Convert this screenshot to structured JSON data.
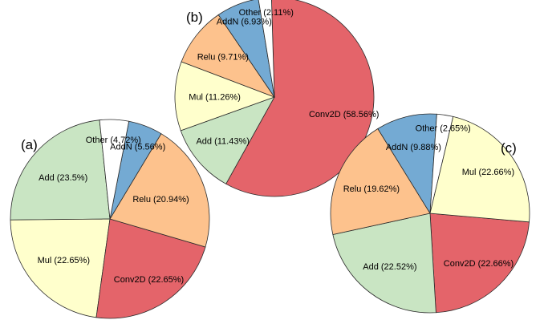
{
  "chart_data": [
    {
      "type": "pie",
      "panel_label": "(a)",
      "categories": [
        "Add",
        "Mul",
        "Conv2D",
        "Relu",
        "AddN",
        "Other"
      ],
      "values": [
        23.5,
        22.65,
        22.65,
        20.94,
        5.56,
        4.72
      ],
      "labels": [
        "Add (23.5%)",
        "Mul (22.65%)",
        "Conv2D (22.65%)",
        "Relu (20.94%)",
        "AddN (5.56%)",
        "Other (4.72%)"
      ],
      "colors": [
        "#c9e5c3",
        "#ffffcc",
        "#e4646a",
        "#fdc28d",
        "#74aad3",
        "#ffffff"
      ]
    },
    {
      "type": "pie",
      "panel_label": "(b)",
      "categories": [
        "Conv2D",
        "Add",
        "Mul",
        "Relu",
        "AddN",
        "Other"
      ],
      "values": [
        58.56,
        11.43,
        11.26,
        9.71,
        6.93,
        2.11
      ],
      "labels": [
        "Conv2D (58.56%)",
        "Add (11.43%)",
        "Mul (11.26%)",
        "Relu (9.71%)",
        "AddN (6.93%)",
        "Other (2.11%)"
      ],
      "colors": [
        "#e4646a",
        "#c9e5c3",
        "#ffffcc",
        "#fdc28d",
        "#74aad3",
        "#ffffff"
      ]
    },
    {
      "type": "pie",
      "panel_label": "(c)",
      "categories": [
        "Conv2D",
        "Add",
        "Relu",
        "AddN",
        "Other",
        "Mul"
      ],
      "values": [
        22.66,
        22.52,
        19.62,
        9.88,
        2.65,
        22.66
      ],
      "labels": [
        "Conv2D (22.66%)",
        "Add (22.52%)",
        "Relu (19.62%)",
        "AddN (9.88%)",
        "Other (2.65%)",
        "Mul (22.66%)"
      ],
      "colors": [
        "#e4646a",
        "#c9e5c3",
        "#fdc28d",
        "#74aad3",
        "#ffffff",
        "#ffffcc"
      ]
    }
  ]
}
